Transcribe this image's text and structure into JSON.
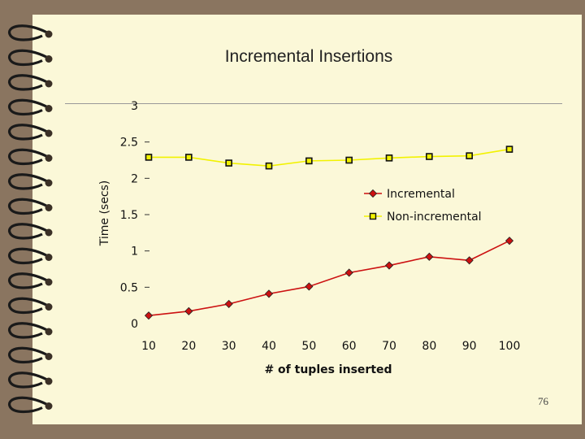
{
  "slide": {
    "title": "Incremental Insertions",
    "page_number": "76"
  },
  "colors": {
    "page_bg": "#fbf8d8",
    "frame": "#8a7560",
    "incremental": "#cc1111",
    "non_incremental": "#f2f200"
  },
  "chart_data": {
    "type": "line",
    "title": "Incremental Insertions",
    "xlabel": "# of tuples inserted",
    "ylabel": "Time (secs)",
    "categories": [
      "10",
      "20",
      "30",
      "40",
      "50",
      "60",
      "70",
      "80",
      "90",
      "100"
    ],
    "y_ticks": [
      "0",
      "0.5",
      "1",
      "1.5",
      "2",
      "2.5",
      "3"
    ],
    "ylim": [
      0,
      3
    ],
    "grid": false,
    "legend_position": "right",
    "series": [
      {
        "name": "Incremental",
        "marker": "diamond",
        "values": [
          0.11,
          0.17,
          0.27,
          0.41,
          0.51,
          0.7,
          0.8,
          0.92,
          0.87,
          1.14
        ]
      },
      {
        "name": "Non-incremental",
        "marker": "square",
        "values": [
          2.29,
          2.29,
          2.21,
          2.17,
          2.24,
          2.25,
          2.28,
          2.3,
          2.31,
          2.4
        ]
      }
    ]
  }
}
